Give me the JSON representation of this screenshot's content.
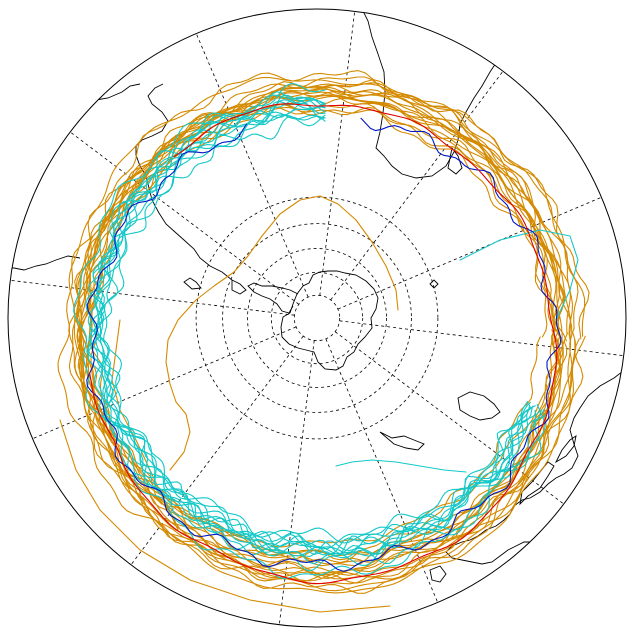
{
  "map": {
    "projection": "south-polar-stereographic",
    "graticule": {
      "longitude_step_deg": 30,
      "latitude_circles_deg": [
        -80,
        -70,
        -60,
        -50,
        -40
      ]
    },
    "colors": {
      "coastline": "#000000",
      "graticule": "#000000",
      "ensemble_tracks": "#d48a00",
      "alternate_tracks": "#14c8c8",
      "blue_track": "#0018c8",
      "red_track": "#e00000"
    },
    "series": [
      {
        "color_key": "ensemble_tracks",
        "count": 18
      },
      {
        "color_key": "alternate_tracks",
        "count": 12
      },
      {
        "color_key": "blue_track",
        "count": 1
      },
      {
        "color_key": "red_track",
        "count": 1
      }
    ]
  }
}
